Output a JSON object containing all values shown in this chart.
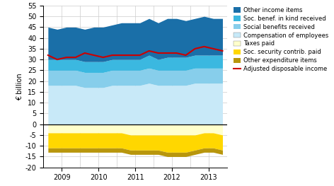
{
  "x_positions": [
    0,
    1,
    2,
    3,
    4,
    5,
    6,
    7,
    8,
    9,
    10,
    11,
    12,
    13,
    14,
    15,
    16,
    17,
    18,
    19
  ],
  "x_ticks": [
    1.5,
    5.5,
    9.5,
    13.5,
    17.5
  ],
  "x_tick_labels": [
    "2009",
    "2010",
    "2011",
    "2012",
    "2013"
  ],
  "compensation_of_employees": [
    18,
    18,
    18,
    18,
    17,
    17,
    17,
    18,
    18,
    18,
    18,
    19,
    18,
    18,
    18,
    18,
    19,
    19,
    19,
    19
  ],
  "social_benefits_received": [
    7,
    7,
    7,
    7,
    7,
    7,
    7,
    7,
    7,
    7,
    7,
    7,
    7,
    7,
    7,
    7,
    7,
    7,
    7,
    7
  ],
  "soc_benef_in_kind_received": [
    5,
    5,
    5,
    5,
    5,
    5,
    5,
    5,
    5,
    5,
    5,
    6,
    5,
    6,
    6,
    6,
    6,
    6,
    6,
    6
  ],
  "other_income_items": [
    15,
    14,
    15,
    15,
    15,
    16,
    16,
    16,
    17,
    17,
    17,
    17,
    17,
    18,
    18,
    17,
    17,
    18,
    17,
    17
  ],
  "taxes_paid": [
    -4,
    -4,
    -4,
    -4,
    -4,
    -4,
    -4,
    -4,
    -4,
    -5,
    -5,
    -5,
    -5,
    -5,
    -5,
    -5,
    -5,
    -4,
    -4,
    -5
  ],
  "soc_security_contrib_paid": [
    -7,
    -7,
    -7,
    -7,
    -7,
    -7,
    -7,
    -7,
    -7,
    -7,
    -7,
    -7,
    -7,
    -8,
    -8,
    -8,
    -7,
    -7,
    -7,
    -7
  ],
  "other_expenditure_items": [
    -2,
    -2,
    -2,
    -2,
    -2,
    -2,
    -2,
    -2,
    -2,
    -2,
    -2,
    -2,
    -2,
    -2,
    -2,
    -2,
    -2,
    -2,
    -2,
    -2
  ],
  "adjusted_disposable_income": [
    32,
    30,
    31,
    31,
    33,
    32,
    31,
    32,
    32,
    32,
    32,
    34,
    33,
    33,
    33,
    32,
    35,
    36,
    35,
    34
  ],
  "colors": {
    "other_income_items": "#1A6FA8",
    "soc_benef_in_kind_received": "#3BB8E0",
    "social_benefits_received": "#87CEEB",
    "compensation_of_employees": "#C8E9F8",
    "taxes_paid": "#FFFFCC",
    "soc_security_contrib_paid": "#FFD700",
    "other_expenditure_items": "#B8960C",
    "adjusted_disposable_income": "#CC0000"
  },
  "ylim": [
    -20,
    55
  ],
  "yticks": [
    -20,
    -15,
    -10,
    -5,
    0,
    5,
    10,
    15,
    20,
    25,
    30,
    35,
    40,
    45,
    50,
    55
  ],
  "ylabel": "€ billion",
  "background_color": "#ffffff",
  "grid_color": "#cccccc",
  "legend_labels": [
    "Other income items",
    "Soc. benef. in kind received",
    "Social benefits received",
    "Compensation of employees",
    "Taxes paid",
    "Soc. security contrib. paid",
    "Other expenditure items",
    "Adjusted disposable income"
  ]
}
